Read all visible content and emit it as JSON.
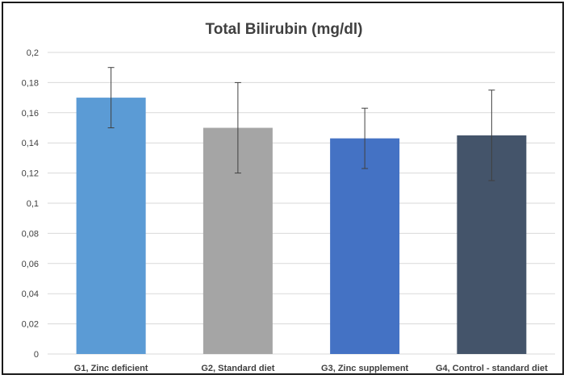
{
  "chart_data": {
    "type": "bar",
    "title": "Total Bilirubin (mg/dl)",
    "categories": [
      "G1, Zinc deficient",
      "G2, Standard diet",
      "G3, Zinc supplement",
      "G4, Control - standard diet"
    ],
    "values": [
      0.17,
      0.15,
      0.143,
      0.145
    ],
    "error_bars": [
      {
        "lower": 0.15,
        "upper": 0.19
      },
      {
        "lower": 0.12,
        "upper": 0.18
      },
      {
        "lower": 0.123,
        "upper": 0.163
      },
      {
        "lower": 0.115,
        "upper": 0.175
      }
    ],
    "colors": [
      "#5b9bd5",
      "#a5a5a5",
      "#4472c4",
      "#44546a"
    ],
    "ylim": [
      0,
      0.2
    ],
    "yticks": [
      "0",
      "0,02",
      "0,04",
      "0,06",
      "0,08",
      "0,1",
      "0,12",
      "0,14",
      "0,16",
      "0,18",
      "0,2"
    ],
    "grid": true,
    "legend": "none"
  }
}
